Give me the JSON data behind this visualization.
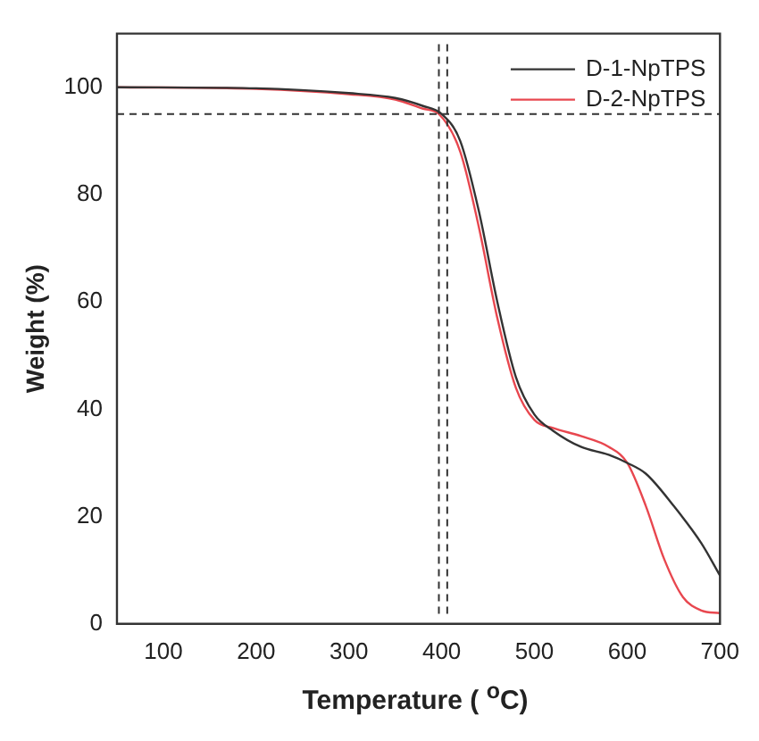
{
  "chart_data": {
    "type": "line",
    "xlabel": "Temperature ( $^{o}$C)",
    "ylabel": "Weight (%)",
    "xlim": [
      50,
      700
    ],
    "xticks": [
      100,
      200,
      300,
      400,
      500,
      600,
      700
    ],
    "ylim": [
      0,
      110
    ],
    "yticks": [
      0,
      20,
      40,
      60,
      80,
      100
    ],
    "grid": false,
    "legend": "top right",
    "marker": "none",
    "line_style": "solid",
    "ref_lines": [
      {
        "axis": "x",
        "value": 397,
        "color": "#333333",
        "line_style": "dashed"
      },
      {
        "axis": "x",
        "value": 406,
        "color": "#333333",
        "line_style": "dashed"
      },
      {
        "axis": "y",
        "value": 95,
        "color": "#333333",
        "line_style": "dashed"
      }
    ],
    "series": [
      {
        "name": "D-1-NpTPS",
        "color": "#333333",
        "x": [
          50,
          200,
          300,
          350,
          380,
          400,
          420,
          440,
          460,
          480,
          500,
          520,
          550,
          580,
          600,
          620,
          650,
          680,
          700
        ],
        "values": [
          100,
          99.8,
          98.9,
          98,
          96.5,
          95,
          90,
          77,
          60,
          46,
          39,
          36,
          33,
          31.5,
          30,
          28,
          22,
          15,
          9
        ]
      },
      {
        "name": "D-2-NpTPS",
        "color": "#e8474f",
        "x": [
          50,
          200,
          300,
          350,
          380,
          397,
          420,
          440,
          460,
          480,
          500,
          520,
          550,
          580,
          600,
          620,
          640,
          660,
          680,
          700
        ],
        "values": [
          100,
          99.7,
          98.7,
          97.7,
          96,
          95,
          88,
          74,
          57,
          44,
          38,
          36.5,
          35,
          33,
          30,
          22,
          12,
          5,
          2.5,
          2
        ]
      }
    ]
  }
}
